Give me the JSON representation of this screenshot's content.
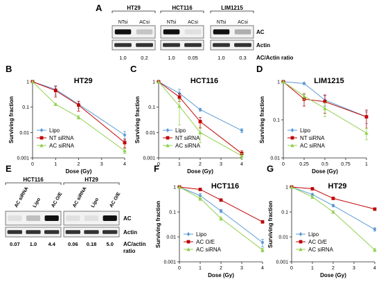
{
  "panel_a": {
    "label": "A",
    "groups": [
      {
        "title": "HT29",
        "lanes": [
          "NTsi",
          "ACsi"
        ],
        "ratios": [
          "1.0",
          "0.2"
        ]
      },
      {
        "title": "HCT116",
        "lanes": [
          "NTsi",
          "ACsi"
        ],
        "ratios": [
          "1.0",
          "0.05"
        ]
      },
      {
        "title": "LIM1215",
        "lanes": [
          "NTsi",
          "ACsi"
        ],
        "ratios": [
          "1.0",
          "0.3"
        ]
      }
    ],
    "row_labels": [
      "AC",
      "Actin",
      "AC/Actin ratio"
    ]
  },
  "panel_e": {
    "label": "E",
    "groups": [
      {
        "title": "HCT116",
        "lanes": [
          "AC siRNA",
          "Lipo",
          "AC O/E"
        ],
        "ratios": [
          "0.07",
          "1.0",
          "4.4"
        ]
      },
      {
        "title": "HT29",
        "lanes": [
          "AC siRNA",
          "Lipo",
          "AC O/E"
        ],
        "ratios": [
          "0.06",
          "0.18",
          "5.0"
        ]
      }
    ],
    "row_labels": [
      "AC",
      "Actin"
    ],
    "ratio_label": [
      "AC/actin",
      "ratio"
    ]
  },
  "colors": {
    "lipo": "#5b9bd5",
    "red": "#c00000",
    "green": "#92d050",
    "axis": "#222222"
  },
  "chart_data": [
    {
      "panel": "B",
      "type": "line",
      "title": "HT29",
      "xlabel": "Dose (Gy)",
      "ylabel": "Surviving fraction",
      "ylog": true,
      "ylim": [
        0.001,
        1
      ],
      "xlim": [
        0,
        4
      ],
      "xticks": [
        0,
        1,
        2,
        3,
        4
      ],
      "xtick_labels": [
        "0",
        "1",
        "2",
        "3",
        "4"
      ],
      "yticks": [
        1,
        0.1,
        0.01,
        0.001
      ],
      "ytick_labels": [
        "1",
        "0.1",
        "0.01",
        "0.001"
      ],
      "legend": "bottom-left",
      "series": [
        {
          "name": "Lipo",
          "color": "#5b9bd5",
          "marker": "diamond",
          "x": [
            0,
            1,
            2,
            4
          ],
          "y": [
            1,
            0.5,
            0.13,
            0.008
          ],
          "err": [
            0,
            0.2,
            0.04,
            0.003
          ]
        },
        {
          "name": "NT siRNA",
          "color": "#c00000",
          "marker": "square",
          "x": [
            0,
            1,
            2,
            4
          ],
          "y": [
            1,
            0.45,
            0.12,
            0.004
          ],
          "err": [
            0,
            0.2,
            0.05,
            0.0015
          ]
        },
        {
          "name": "AC siRNA",
          "color": "#92d050",
          "marker": "triangle",
          "x": [
            0,
            1,
            2,
            4
          ],
          "y": [
            1,
            0.13,
            0.04,
            0.0019
          ],
          "err": [
            0,
            0.01,
            0.006,
            0.0004
          ]
        }
      ]
    },
    {
      "panel": "C",
      "type": "line",
      "title": "HCT116",
      "xlabel": "Dose (Gy)",
      "ylabel": "Surviving fraction",
      "ylog": true,
      "ylim": [
        0.001,
        1
      ],
      "xlim": [
        0,
        4
      ],
      "xticks": [
        0,
        1,
        2,
        3,
        4
      ],
      "xtick_labels": [
        "0",
        "1",
        "2",
        "3",
        "4"
      ],
      "yticks": [
        1,
        0.1,
        0.01,
        0.001
      ],
      "ytick_labels": [
        "1",
        "0.1",
        "0.01",
        "0.001"
      ],
      "legend": "bottom-left",
      "series": [
        {
          "name": "Lipo",
          "color": "#5b9bd5",
          "marker": "diamond",
          "x": [
            0,
            1,
            2,
            4
          ],
          "y": [
            1,
            0.35,
            0.08,
            0.012
          ],
          "err": [
            0,
            0.15,
            0.01,
            0.002
          ]
        },
        {
          "name": "NT siRNA",
          "color": "#c00000",
          "marker": "square",
          "x": [
            0,
            1,
            2,
            4
          ],
          "y": [
            1,
            0.25,
            0.027,
            0.0015
          ],
          "err": [
            0,
            0.08,
            0.012,
            0.0004
          ]
        },
        {
          "name": "AC siRNA",
          "color": "#92d050",
          "marker": "triangle",
          "x": [
            0,
            1,
            2,
            4
          ],
          "y": [
            1,
            0.11,
            0.01,
            0.0012
          ],
          "err": [
            0,
            0.09,
            0.006,
            0.0003
          ]
        }
      ]
    },
    {
      "panel": "D",
      "type": "line",
      "title": "LIM1215",
      "xlabel": "Dose (Gy)",
      "ylabel": "Surviving fraction",
      "ylog": true,
      "ylim": [
        0.01,
        1
      ],
      "xlim": [
        0,
        1
      ],
      "xticks": [
        0,
        0.25,
        0.5,
        0.75,
        1
      ],
      "xtick_labels": [
        "0",
        "0.25",
        "0.5",
        "0.75",
        "1"
      ],
      "yticks": [
        1,
        0.1,
        0.01
      ],
      "ytick_labels": [
        "1",
        "0.1",
        "0.01"
      ],
      "legend": "bottom-left",
      "series": [
        {
          "name": "Lipo",
          "color": "#5b9bd5",
          "marker": "diamond",
          "x": [
            0,
            0.25,
            0.5,
            1
          ],
          "y": [
            1,
            0.9,
            0.33,
            0.12
          ],
          "err": [
            0,
            0.05,
            0.1,
            0.04
          ]
        },
        {
          "name": "NT siRNA",
          "color": "#c00000",
          "marker": "square",
          "x": [
            0,
            0.25,
            0.5,
            1
          ],
          "y": [
            1,
            0.35,
            0.3,
            0.12
          ],
          "err": [
            0,
            0.12,
            0.15,
            0.06
          ]
        },
        {
          "name": "AC siRNA",
          "color": "#92d050",
          "marker": "triangle",
          "x": [
            0,
            0.25,
            0.5,
            1
          ],
          "y": [
            1,
            0.42,
            0.2,
            0.045
          ],
          "err": [
            0,
            0.08,
            0.08,
            0.015
          ]
        }
      ]
    },
    {
      "panel": "F",
      "type": "line",
      "title": "HCT116",
      "xlabel": "Dose (Gy)",
      "ylabel": "Surviving fraction",
      "ylog": true,
      "ylim": [
        0.001,
        1
      ],
      "xlim": [
        0,
        4
      ],
      "xticks": [
        0,
        1,
        2,
        3,
        4
      ],
      "xtick_labels": [
        "0",
        "1",
        "2",
        "3",
        "4"
      ],
      "yticks": [
        1,
        0.1,
        0.01,
        0.001
      ],
      "ytick_labels": [
        "1",
        "0.1",
        "0.01",
        "0.001"
      ],
      "legend": "bottom-left",
      "series": [
        {
          "name": "Lipo",
          "color": "#5b9bd5",
          "marker": "diamond",
          "x": [
            0,
            1,
            2,
            4
          ],
          "y": [
            1,
            0.45,
            0.11,
            0.006
          ],
          "err": [
            0,
            0.1,
            0.015,
            0.002
          ]
        },
        {
          "name": "AC O/E",
          "color": "#c00000",
          "marker": "square",
          "x": [
            0,
            1,
            2,
            4
          ],
          "y": [
            1,
            0.8,
            0.3,
            0.04
          ],
          "err": [
            0,
            0.05,
            0.03,
            0.004
          ]
        },
        {
          "name": "AC siRNA",
          "color": "#92d050",
          "marker": "triangle",
          "x": [
            0,
            1,
            2,
            4
          ],
          "y": [
            1,
            0.35,
            0.055,
            0.003
          ],
          "err": [
            0,
            0.06,
            0.008,
            0.0005
          ]
        }
      ]
    },
    {
      "panel": "G",
      "type": "line",
      "title": "HT29",
      "xlabel": "Dose (Gy)",
      "ylabel": "Surviving fraction",
      "ylog": true,
      "ylim": [
        0.001,
        1
      ],
      "xlim": [
        0,
        4
      ],
      "xticks": [
        0,
        1,
        2,
        3,
        4
      ],
      "xtick_labels": [
        "0",
        "1",
        "2",
        "3",
        "4"
      ],
      "yticks": [
        1,
        0.1,
        0.01,
        0.001
      ],
      "ytick_labels": [
        "1",
        "0.1",
        "0.01",
        "0.001"
      ],
      "legend": "bottom-left",
      "series": [
        {
          "name": "Lipo",
          "color": "#5b9bd5",
          "marker": "diamond",
          "x": [
            0,
            1,
            2,
            4
          ],
          "y": [
            1,
            0.5,
            0.18,
            0.02
          ],
          "err": [
            0,
            0.05,
            0.02,
            0.003
          ]
        },
        {
          "name": "AC O/E",
          "color": "#c00000",
          "marker": "square",
          "x": [
            0,
            1,
            2,
            4
          ],
          "y": [
            1,
            0.85,
            0.35,
            0.13
          ],
          "err": [
            0,
            0.05,
            0.03,
            0.01
          ]
        },
        {
          "name": "AC siRNA",
          "color": "#92d050",
          "marker": "triangle",
          "x": [
            0,
            1,
            2,
            4
          ],
          "y": [
            1,
            0.4,
            0.1,
            0.003
          ],
          "err": [
            0,
            0.05,
            0.01,
            0.0004
          ]
        }
      ]
    }
  ]
}
